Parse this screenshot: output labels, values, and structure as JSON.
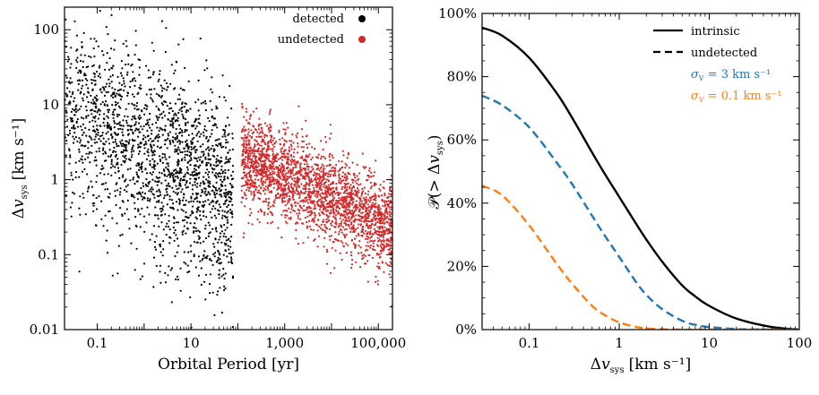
{
  "chart_data": [
    {
      "type": "scatter",
      "xlabel": "Orbital Period [yr]",
      "ylabel": "Δv_sys [km s⁻¹]",
      "ylabel_main": "Δ",
      "ylabel_var": "v",
      "ylabel_sub": "sys",
      "ylabel_unit": "[km s⁻¹]",
      "xscale": "log",
      "yscale": "log",
      "xlim": [
        0.02,
        200000
      ],
      "ylim": [
        0.01,
        200
      ],
      "xticks": [
        0.1,
        10,
        1000,
        100000
      ],
      "xtick_labels": [
        "0.1",
        "10",
        "1,000",
        "100,000"
      ],
      "yticks": [
        0.01,
        0.1,
        1,
        10,
        100
      ],
      "ytick_labels": [
        "0.01",
        "0.1",
        "1",
        "10",
        "100"
      ],
      "legend_position": "top-right",
      "series": [
        {
          "name": "detected",
          "color": "#000000",
          "trend": {
            "period_range": [
              0.02,
              80
            ],
            "log_v_at_logP0": 0.6,
            "slope": -0.35,
            "scatter_dex": 0.55
          },
          "n_points": 1900
        },
        {
          "name": "undetected",
          "color": "#d62728",
          "trend": {
            "period_range": [
              10,
              200000
            ],
            "log_v_at_logP0": 0.95,
            "slope": -0.3,
            "scatter_dex": 0.3
          },
          "n_points": 2400
        }
      ]
    },
    {
      "type": "line",
      "xlabel": "Δv_sys [km s⁻¹]",
      "xlabel_main": "Δ",
      "xlabel_var": "v",
      "xlabel_sub": "sys",
      "xlabel_unit": "[km s⁻¹]",
      "ylabel": "𝒫(> Δv_sys)",
      "ylabel_main": "𝒫(> Δ",
      "ylabel_var": "v",
      "ylabel_sub": "sys",
      "ylabel_end": ")",
      "xscale": "log",
      "xlim": [
        0.03,
        100
      ],
      "ylim": [
        0,
        100
      ],
      "xticks": [
        0.1,
        1,
        10,
        100
      ],
      "xtick_labels": [
        "0.1",
        "1",
        "10",
        "100"
      ],
      "yticks": [
        0,
        20,
        40,
        60,
        80,
        100
      ],
      "ytick_labels": [
        "0%",
        "20%",
        "40%",
        "60%",
        "80%",
        "100%"
      ],
      "legend_position": "top-right",
      "legend": [
        {
          "label": "intrinsic",
          "style": "solid",
          "color": "#000000"
        },
        {
          "label": "undetected",
          "style": "dashed",
          "color": "#000000"
        },
        {
          "label_var": "σ",
          "label_sub": "v",
          "label_rest": " = 3 km s⁻¹",
          "color": "#1f77b4"
        },
        {
          "label_var": "σ",
          "label_sub": "v",
          "label_rest": " = 0.1 km s⁻¹",
          "color": "#ff7f0e"
        }
      ],
      "x": [
        0.03,
        0.05,
        0.1,
        0.2,
        0.3,
        0.5,
        0.7,
        1,
        1.5,
        2,
        3,
        5,
        7,
        10,
        20,
        50,
        100
      ],
      "series": [
        {
          "name": "intrinsic",
          "style": "solid",
          "color": "#000000",
          "values": [
            95.5,
            93,
            86,
            75,
            67,
            56,
            49,
            42,
            34,
            28.5,
            21.5,
            14,
            10.5,
            7.5,
            3.5,
            0.8,
            0
          ]
        },
        {
          "name": "σv = 3 km s⁻¹",
          "style": "dashed",
          "color": "#1f77b4",
          "values": [
            74,
            71,
            64,
            53,
            46,
            36,
            29.5,
            23,
            15.5,
            11,
            6.5,
            2.8,
            1.5,
            0.8,
            0.2,
            0,
            0
          ]
        },
        {
          "name": "σv = 0.1 km s⁻¹",
          "style": "dashed",
          "color": "#ff7f0e",
          "values": [
            45.5,
            42.5,
            33,
            21,
            14.5,
            7.5,
            4.5,
            2.3,
            0.9,
            0.4,
            0.1,
            0,
            0,
            0,
            0,
            0,
            0
          ]
        }
      ]
    }
  ]
}
